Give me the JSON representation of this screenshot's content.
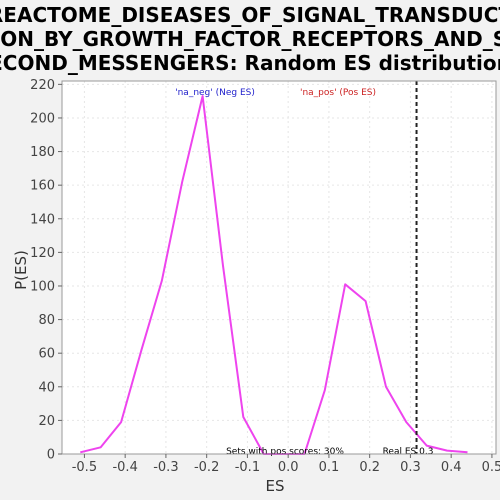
{
  "chart_data": {
    "type": "line",
    "title_lines": [
      "REACTOME_DISEASES_OF_SIGNAL_TRANSDUCT",
      "ION_BY_GROWTH_FACTOR_RECEPTORS_AND_S",
      "ECOND_MESSENGERS: Random ES distribution"
    ],
    "xlabel": "ES",
    "ylabel": "P(ES)",
    "xlim": [
      -0.555,
      0.51
    ],
    "ylim": [
      0,
      222
    ],
    "xticks": [
      -0.5,
      -0.4,
      -0.3,
      -0.2,
      -0.1,
      0.0,
      0.1,
      0.2,
      0.3,
      0.4,
      0.5
    ],
    "xtick_labels": [
      "-0.5",
      "-0.4",
      "-0.3",
      "-0.2",
      "-0.1",
      "0.0",
      "0.1",
      "0.2",
      "0.3",
      "0.4",
      "0.5"
    ],
    "yticks": [
      0,
      20,
      40,
      60,
      80,
      100,
      120,
      140,
      160,
      180,
      200,
      220
    ],
    "ytick_labels": [
      "0",
      "20",
      "40",
      "60",
      "80",
      "100",
      "120",
      "140",
      "160",
      "180",
      "200",
      "220"
    ],
    "grid": true,
    "series": [
      {
        "color": "#ee44ee",
        "x": [
          -0.51,
          -0.46,
          -0.41,
          -0.36,
          -0.31,
          -0.26,
          -0.21,
          -0.16,
          -0.11,
          -0.06,
          -0.01,
          0.04,
          0.09,
          0.14,
          0.19,
          0.24,
          0.29,
          0.34,
          0.39,
          0.44
        ],
        "y": [
          1,
          4,
          19,
          62,
          103,
          162,
          213,
          112,
          22,
          0,
          0,
          0,
          38,
          101,
          91,
          40,
          19,
          5,
          2,
          1
        ]
      }
    ],
    "annotations": {
      "neg_label": "'na_neg' (Neg ES)",
      "pos_label": "'na_pos' (Pos ES)",
      "sets_label": "Sets with pos scores: 30%",
      "real_es_label": "Real ES 0.3",
      "real_es_value": 0.315
    },
    "colors": {
      "neg": "#2222cc",
      "pos": "#cc2222",
      "plot_bg": "#ffffff",
      "grid": "#e6e6e6"
    }
  }
}
